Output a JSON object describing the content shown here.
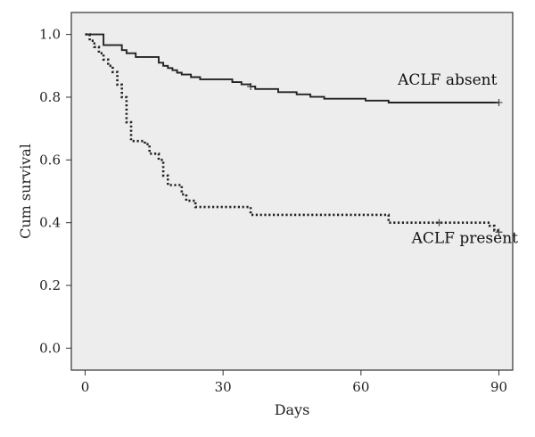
{
  "chart_data": {
    "type": "line",
    "title": "",
    "xlabel": "Days",
    "ylabel": "Cum survival",
    "xlim": [
      -3,
      93
    ],
    "ylim": [
      -0.07,
      1.07
    ],
    "x_ticks": [
      0,
      30,
      60,
      90
    ],
    "x_tick_labels": [
      "0",
      "30",
      "60",
      "90"
    ],
    "y_ticks": [
      0.0,
      0.2,
      0.4,
      0.6,
      0.8,
      1.0
    ],
    "y_tick_labels": [
      "0.0",
      "0.2",
      "0.4",
      "0.6",
      "0.8",
      "1.0"
    ],
    "grid": false,
    "background_color": "#ededed",
    "series": [
      {
        "name": "ACLF absent",
        "style": "solid",
        "color": "#222222",
        "steps": [
          [
            0,
            1.0
          ],
          [
            4,
            0.966
          ],
          [
            8,
            0.95
          ],
          [
            9,
            0.94
          ],
          [
            11,
            0.928
          ],
          [
            16,
            0.91
          ],
          [
            17,
            0.9
          ],
          [
            18,
            0.893
          ],
          [
            19,
            0.886
          ],
          [
            20,
            0.878
          ],
          [
            21,
            0.872
          ],
          [
            23,
            0.864
          ],
          [
            25,
            0.857
          ],
          [
            32,
            0.848
          ],
          [
            34,
            0.841
          ],
          [
            36,
            0.834
          ],
          [
            37,
            0.826
          ],
          [
            42,
            0.816
          ],
          [
            46,
            0.809
          ],
          [
            49,
            0.801
          ],
          [
            52,
            0.795
          ],
          [
            61,
            0.789
          ],
          [
            66,
            0.783
          ],
          [
            90,
            0.783
          ]
        ],
        "censor_x": [
          36,
          90
        ]
      },
      {
        "name": "ACLF present",
        "style": "dotted",
        "color": "#222222",
        "steps": [
          [
            0,
            1.0
          ],
          [
            1,
            0.98
          ],
          [
            2,
            0.96
          ],
          [
            3,
            0.94
          ],
          [
            4,
            0.92
          ],
          [
            5,
            0.9
          ],
          [
            6,
            0.88
          ],
          [
            7,
            0.84
          ],
          [
            8,
            0.8
          ],
          [
            9,
            0.72
          ],
          [
            10,
            0.66
          ],
          [
            13,
            0.65
          ],
          [
            14,
            0.62
          ],
          [
            16,
            0.6
          ],
          [
            17,
            0.55
          ],
          [
            18,
            0.52
          ],
          [
            21,
            0.49
          ],
          [
            22,
            0.47
          ],
          [
            24,
            0.45
          ],
          [
            36,
            0.425
          ],
          [
            66,
            0.4
          ],
          [
            88,
            0.39
          ],
          [
            89,
            0.375
          ],
          [
            90,
            0.37
          ]
        ],
        "censor_x": [
          77,
          90
        ]
      }
    ],
    "annotations": [
      {
        "text": "ACLF absent",
        "x": 68,
        "y": 0.84
      },
      {
        "text": "ACLF present",
        "x": 71,
        "y": 0.335
      }
    ]
  }
}
